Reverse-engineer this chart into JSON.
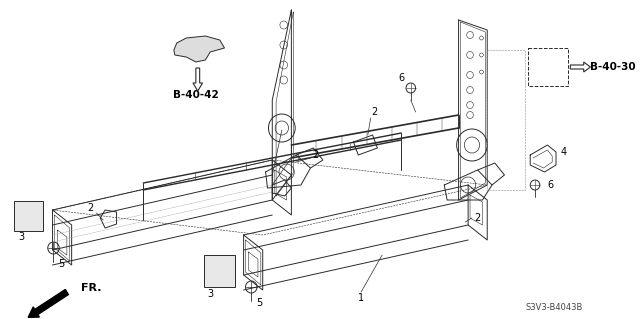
{
  "bg_color": "#ffffff",
  "watermark": "S3V3-B4043B",
  "ref_b4042": "B-40-42",
  "ref_b4030": "B-40-30",
  "fr_label": "FR.",
  "lc": "#2a2a2a",
  "text_color": "#000000"
}
